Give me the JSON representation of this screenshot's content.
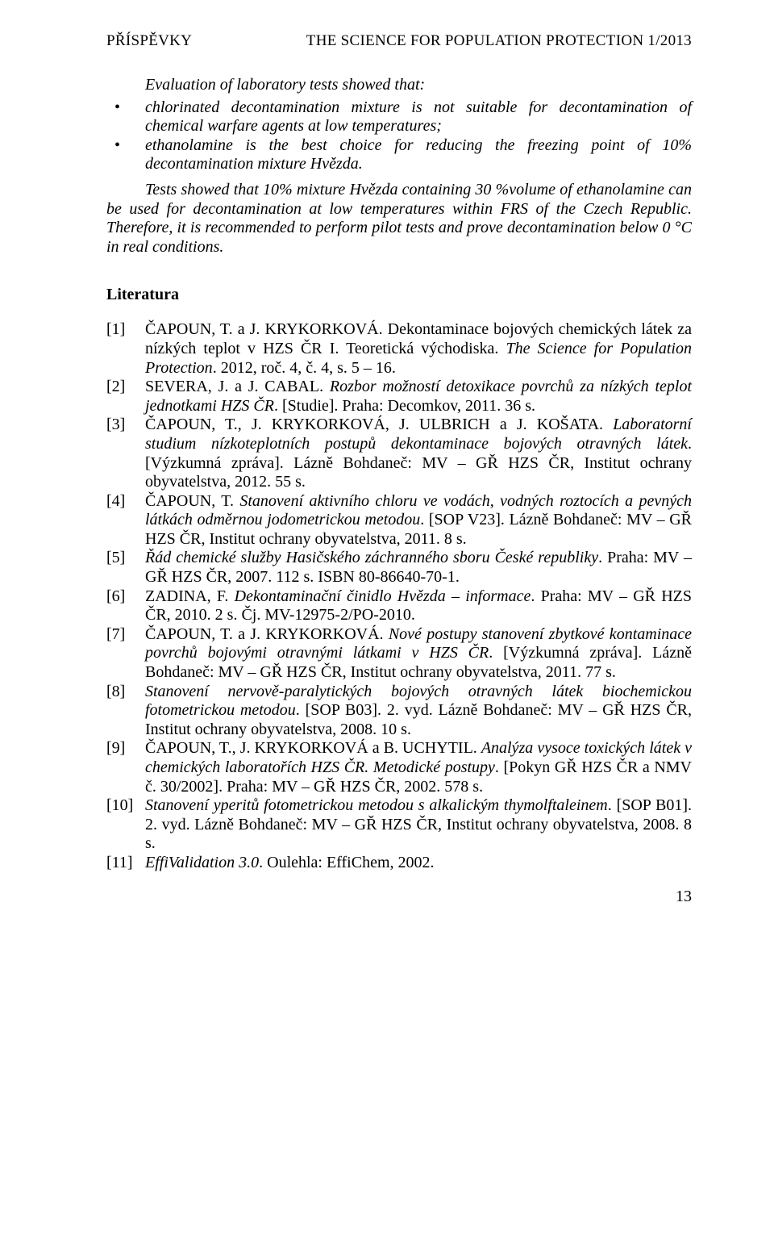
{
  "header": {
    "left": "PŘÍSPĚVKY",
    "right": "THE SCIENCE FOR POPULATION PROTECTION 1/2013"
  },
  "intro": "Evaluation of laboratory tests showed that:",
  "bullets": [
    "chlorinated decontamination mixture is not suitable for decontamination of chemical warfare agents at low temperatures;",
    "ethanolamine is the best choice for reducing the freezing point of 10% decontamination mixture Hvězda."
  ],
  "tests_para": "Tests showed that 10% mixture Hvězda containing 30 %volume of ethanolamine can be used for decontamination at low temperatures within FRS of the Czech Republic. Therefore, it is recommended to perform pilot tests and prove decontamination below 0 °C in real conditions.",
  "literatura_title": "Literatura",
  "refs": [
    {
      "num": "[1]",
      "pre": "ČAPOUN, T. a J. KRYKORKOVÁ. Dekontaminace bojových chemických látek za nízkých teplot v HZS ČR I. Teoretická východiska. ",
      "ital": "The Science for Population Protection",
      "post": ". 2012, roč. 4, č. 4, s. 5 – 16."
    },
    {
      "num": "[2]",
      "pre": "SEVERA, J. a J. CABAL. ",
      "ital": "Rozbor možností detoxikace povrchů za nízkých teplot jednotkami HZS ČR",
      "post": ". [Studie]. Praha: Decomkov, 2011. 36 s."
    },
    {
      "num": "[3]",
      "pre": "ČAPOUN, T., J. KRYKORKOVÁ, J. ULBRICH a J. KOŠATA. ",
      "ital": "Laboratorní studium nízkoteplotních postupů dekontaminace bojových otravných látek",
      "post": ". [Výzkumná zpráva]. Lázně Bohdaneč: MV – GŘ HZS ČR, Institut ochrany obyvatelstva, 2012. 55 s."
    },
    {
      "num": "[4]",
      "pre": "ČAPOUN, T. ",
      "ital": "Stanovení aktivního chloru ve vodách, vodných roztocích a pevných látkách odměrnou jodometrickou metodou",
      "post": ". [SOP V23]. Lázně Bohdaneč: MV – GŘ HZS ČR, Institut ochrany obyvatelstva, 2011. 8 s."
    },
    {
      "num": "[5]",
      "pre": "",
      "ital": "Řád chemické služby Hasičského záchranného sboru České republiky",
      "post": ". Praha: MV – GŘ HZS ČR, 2007. 112 s. ISBN 80-86640-70-1."
    },
    {
      "num": "[6]",
      "pre": "ZADINA, F. ",
      "ital": "Dekontaminační činidlo Hvězda – informace",
      "post": ". Praha: MV – GŘ HZS ČR, 2010. 2 s. Čj. MV-12975-2/PO-2010."
    },
    {
      "num": "[7]",
      "pre": "ČAPOUN, T. a J. KRYKORKOVÁ. ",
      "ital": "Nové postupy stanovení zbytkové kontaminace povrchů bojovými otravnými látkami v HZS ČR",
      "post": ". [Výzkumná zpráva]. Lázně Bohdaneč: MV – GŘ HZS ČR, Institut ochrany obyvatelstva, 2011. 77 s."
    },
    {
      "num": "[8]",
      "pre": "",
      "ital": "Stanovení nervově-paralytických bojových otravných látek biochemickou fotometrickou metodou",
      "post": ". [SOP B03]. 2. vyd. Lázně Bohdaneč: MV – GŘ HZS ČR, Institut ochrany obyvatelstva, 2008. 10 s."
    },
    {
      "num": "[9]",
      "pre": "ČAPOUN, T., J. KRYKORKOVÁ a B. UCHYTIL. ",
      "ital": "Analýza vysoce toxických látek v chemických laboratořích HZS ČR. Metodické postupy",
      "post": ". [Pokyn GŘ HZS ČR a NMV č. 30/2002]. Praha: MV – GŘ HZS ČR, 2002. 578 s."
    },
    {
      "num": "[10]",
      "pre": "",
      "ital": "Stanovení yperitů fotometrickou metodou s alkalickým thymolftaleinem",
      "post": ". [SOP B01]. 2. vyd. Lázně Bohdaneč: MV – GŘ HZS ČR, Institut ochrany obyvatelstva, 2008. 8 s."
    },
    {
      "num": "[11]",
      "pre": "",
      "ital": "EffiValidation 3.0",
      "post": ". Oulehla: EffiChem, 2002."
    }
  ],
  "page_number": "13"
}
